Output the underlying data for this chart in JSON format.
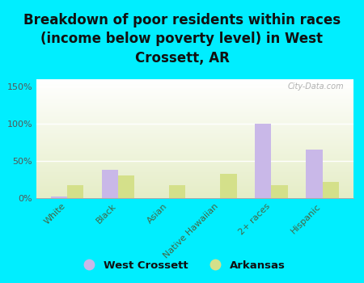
{
  "title": "Breakdown of poor residents within races\n(income below poverty level) in West\nCrossett, AR",
  "categories": [
    "White",
    "Black",
    "Asian",
    "Native Hawaiian",
    "2+ races",
    "Hispanic"
  ],
  "west_crossett": [
    2,
    38,
    0,
    0,
    100,
    65
  ],
  "arkansas": [
    17,
    30,
    17,
    33,
    17,
    22
  ],
  "bar_color_wc": "#c9b8e8",
  "bar_color_ar": "#d4e08a",
  "background_outer": "#00eeff",
  "background_plot_top": "#ffffff",
  "background_plot_bottom": "#e8f0c8",
  "yticks": [
    0,
    50,
    100,
    150
  ],
  "ylim": [
    0,
    160
  ],
  "legend_wc": "West Crossett",
  "legend_ar": "Arkansas",
  "watermark": "City-Data.com",
  "title_fontsize": 12,
  "bar_width": 0.32
}
